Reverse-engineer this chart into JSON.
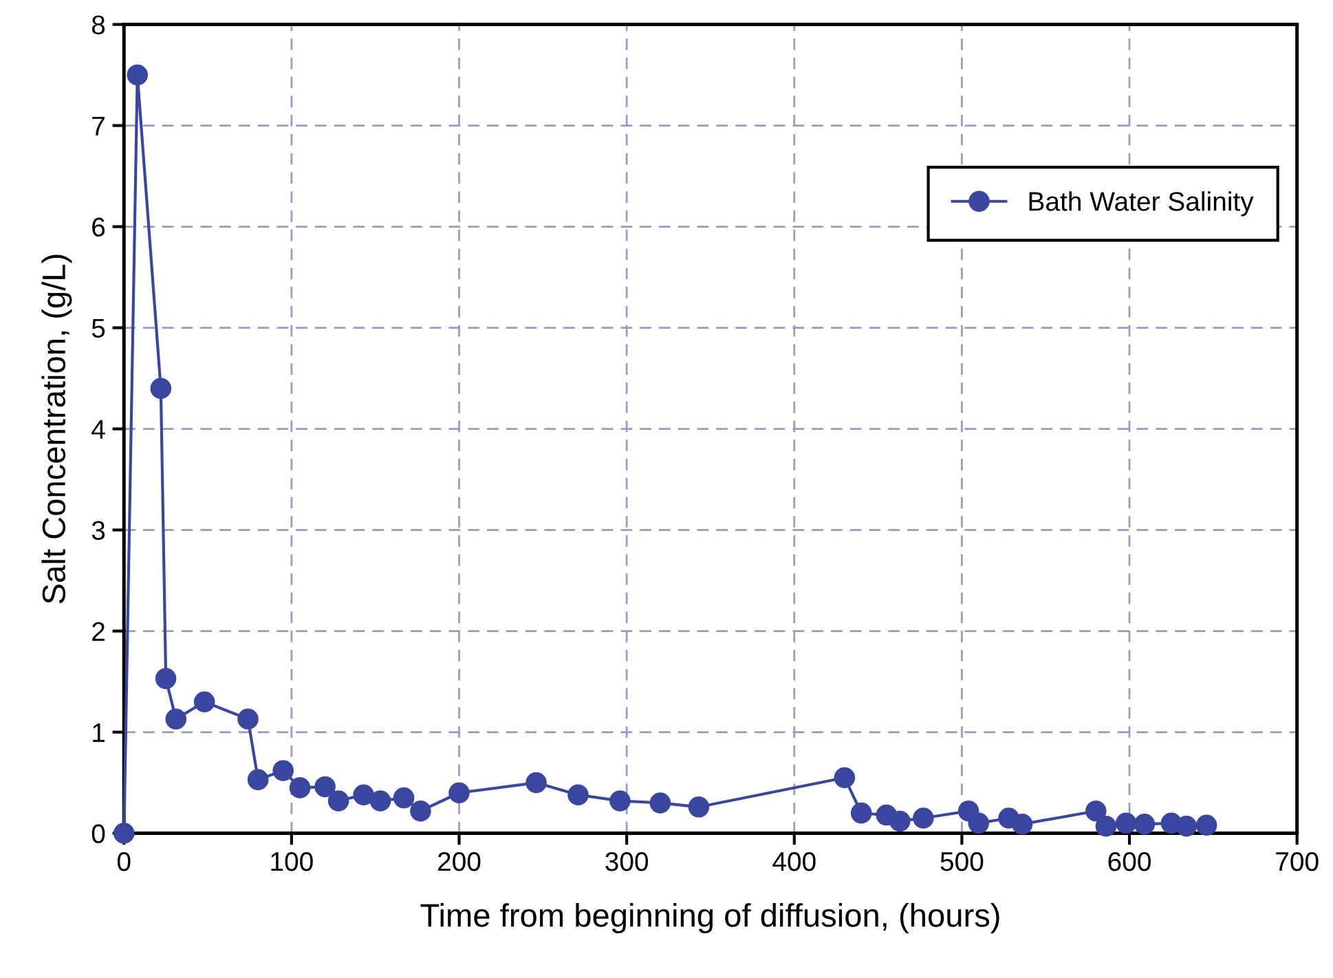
{
  "chart_data": {
    "type": "line",
    "xlabel": "Time from beginning of diffusion, (hours)",
    "ylabel": "Salt Concentration, (g/L)",
    "series": [
      {
        "name": "Bath Water Salinity",
        "color": "#3a46a0",
        "x": [
          0,
          8,
          22,
          25,
          31,
          48,
          74,
          80,
          95,
          105,
          120,
          128,
          143,
          153,
          167,
          177,
          200,
          246,
          271,
          296,
          320,
          343,
          430,
          440,
          455,
          463,
          477,
          504,
          510,
          528,
          536,
          580,
          586,
          598,
          609,
          625,
          634,
          646
        ],
        "values": [
          0,
          7.5,
          4.4,
          1.53,
          1.13,
          1.3,
          1.13,
          0.53,
          0.62,
          0.45,
          0.46,
          0.32,
          0.38,
          0.32,
          0.35,
          0.22,
          0.4,
          0.5,
          0.38,
          0.32,
          0.3,
          0.26,
          0.55,
          0.2,
          0.18,
          0.12,
          0.15,
          0.22,
          0.1,
          0.15,
          0.09,
          0.22,
          0.07,
          0.1,
          0.09,
          0.1,
          0.07,
          0.08
        ]
      }
    ],
    "xlim": [
      0,
      700
    ],
    "xticks": [
      0,
      100,
      200,
      300,
      400,
      500,
      600,
      700
    ],
    "ylim": [
      0,
      8
    ],
    "yticks": [
      0,
      1,
      2,
      3,
      4,
      5,
      6,
      7,
      8
    ],
    "grid": true,
    "legend": "top right",
    "marker": "circle",
    "line_style": "solid"
  }
}
